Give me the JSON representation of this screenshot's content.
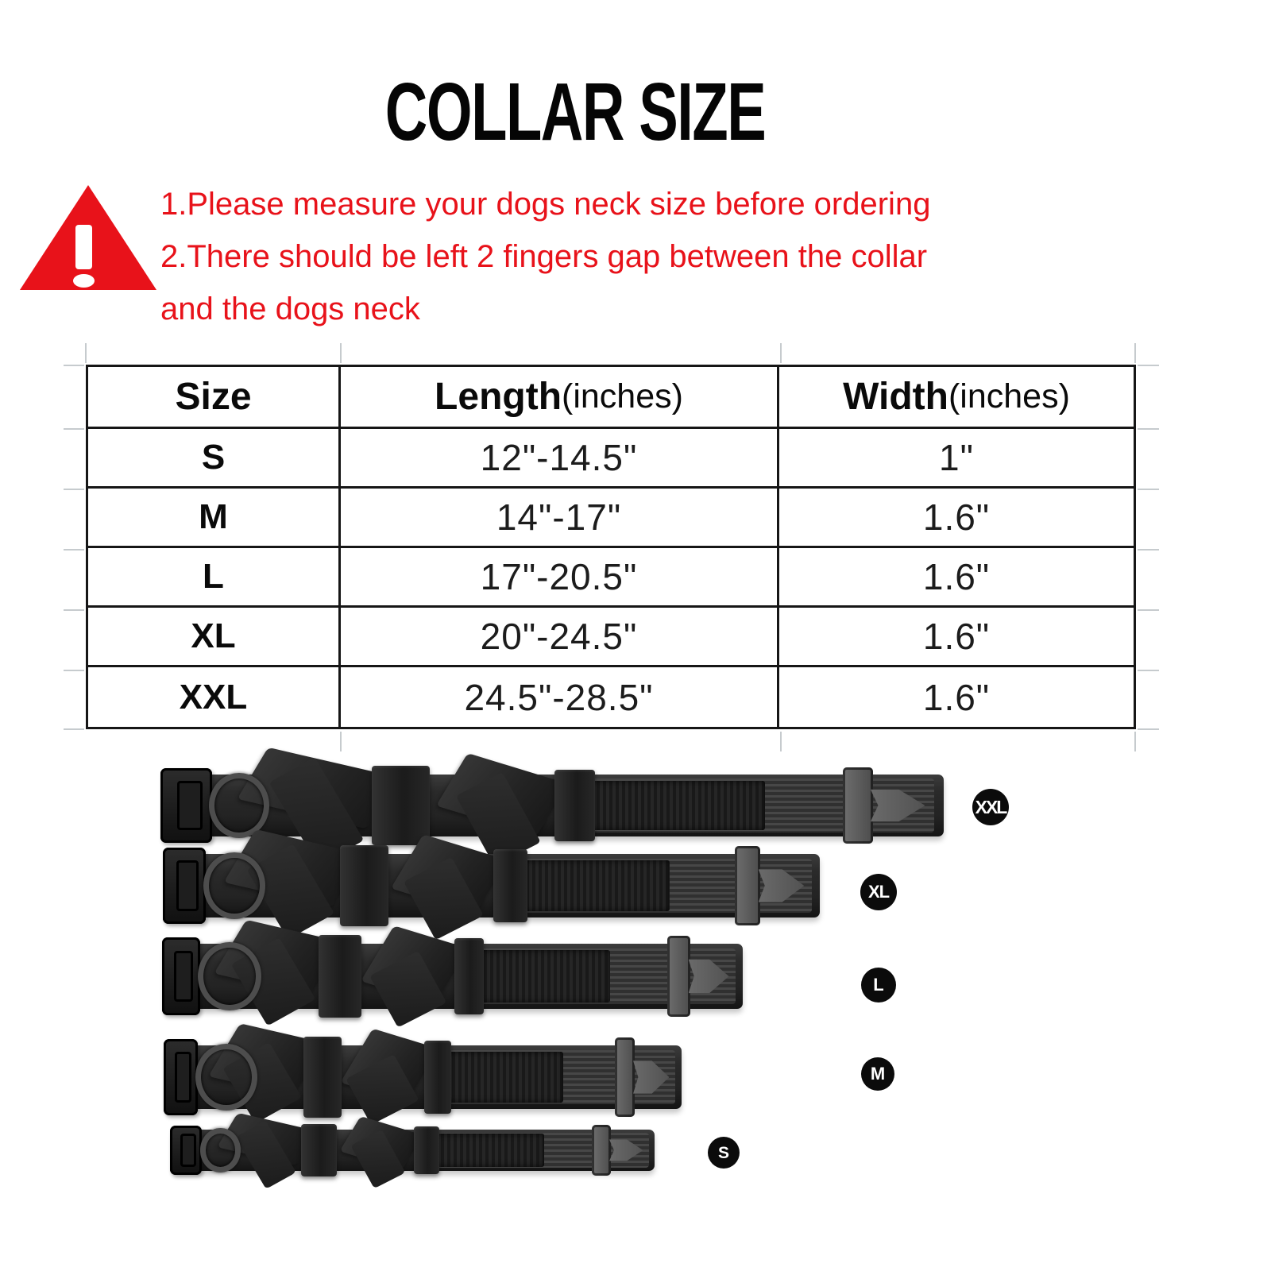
{
  "page": {
    "title": "COLLAR SIZE"
  },
  "warning": {
    "icon": "warning-triangle-icon",
    "accent_color": "#e8121a",
    "lines": [
      "1.Please measure your dogs neck size before ordering",
      "2.There should be left 2 fingers gap between the collar",
      "and the dogs neck"
    ]
  },
  "size_table": {
    "columns": [
      {
        "label": "Size",
        "unit": ""
      },
      {
        "label": "Length",
        "unit": "(inches)"
      },
      {
        "label": "Width",
        "unit": "(inches)"
      }
    ],
    "rows": [
      {
        "size": "S",
        "length": "12\"-14.5\"",
        "width": "1\""
      },
      {
        "size": "M",
        "length": "14\"-17\"",
        "width": "1.6\""
      },
      {
        "size": "L",
        "length": "17\"-20.5\"",
        "width": "1.6\""
      },
      {
        "size": "XL",
        "length": "20\"-24.5\"",
        "width": "1.6\""
      },
      {
        "size": "XXL",
        "length": "24.5\"-28.5\"",
        "width": "1.6\""
      }
    ]
  },
  "collars": [
    {
      "label": "XXL"
    },
    {
      "label": "XL"
    },
    {
      "label": "L"
    },
    {
      "label": "M"
    },
    {
      "label": "S"
    }
  ],
  "colors": {
    "accent_red": "#e8121a",
    "table_border": "#161616",
    "badge_bg": "#0b0b0b",
    "badge_text": "#ffffff",
    "collar_black": "#232323",
    "buckle_gray": "#5e5e5e",
    "gridline_gray": "#c6cbce",
    "background": "#ffffff"
  }
}
